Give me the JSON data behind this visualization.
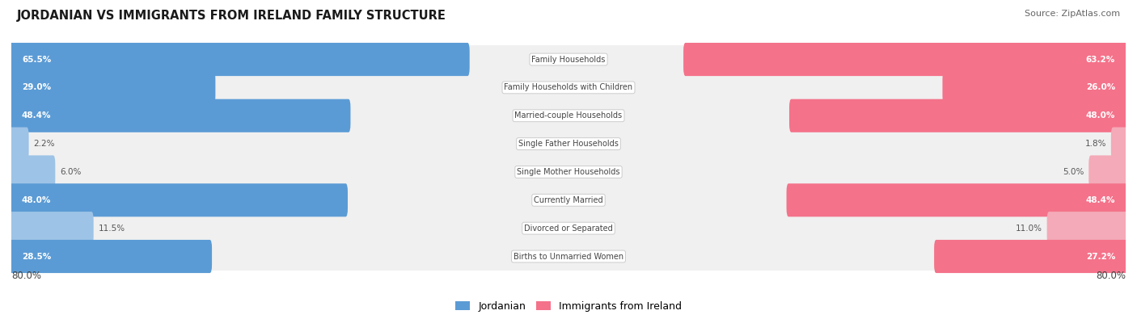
{
  "title": "JORDANIAN VS IMMIGRANTS FROM IRELAND FAMILY STRUCTURE",
  "source": "Source: ZipAtlas.com",
  "categories": [
    "Family Households",
    "Family Households with Children",
    "Married-couple Households",
    "Single Father Households",
    "Single Mother Households",
    "Currently Married",
    "Divorced or Separated",
    "Births to Unmarried Women"
  ],
  "jordanian": [
    65.5,
    29.0,
    48.4,
    2.2,
    6.0,
    48.0,
    11.5,
    28.5
  ],
  "ireland": [
    63.2,
    26.0,
    48.0,
    1.8,
    5.0,
    48.4,
    11.0,
    27.2
  ],
  "max_val": 80.0,
  "blue_dark": "#5b9bd5",
  "blue_light": "#9dc3e6",
  "pink_dark": "#f4728a",
  "pink_light": "#f4aab8",
  "bg_row_color": "#f0f0f0",
  "bg_color": "#ffffff",
  "label_color": "#444444",
  "value_color_white": "#ffffff",
  "value_color_dark": "#555555",
  "legend_jordanian": "Jordanian",
  "legend_ireland": "Immigrants from Ireland",
  "axis_label_left": "80.0%",
  "axis_label_right": "80.0%"
}
